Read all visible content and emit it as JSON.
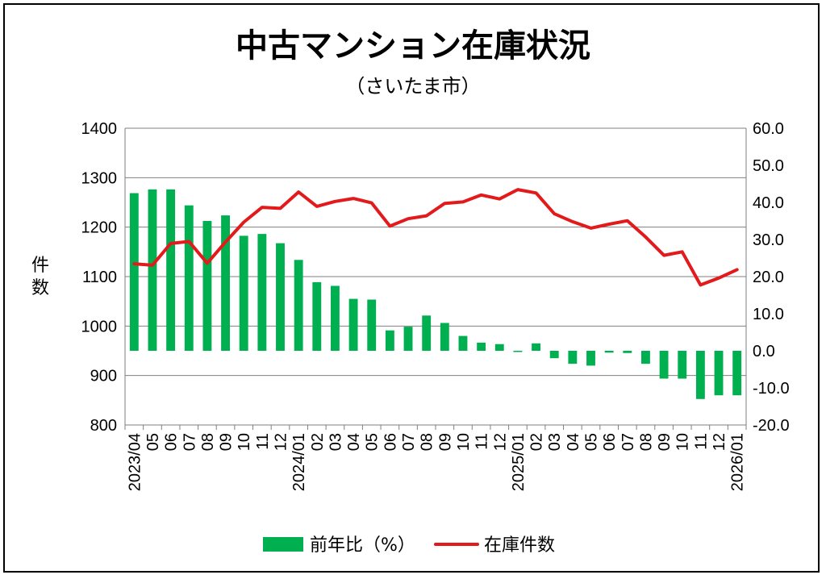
{
  "chart_data": {
    "type": "bar+line",
    "title": "中古マンション在庫状況",
    "subtitle": "（さいたま市）",
    "ylabel": "件数",
    "ylim_left": [
      800,
      1400
    ],
    "yticks_left": [
      1400,
      1300,
      1200,
      1100,
      1000,
      900,
      800
    ],
    "ylim_right": [
      -20,
      60
    ],
    "yticks_right": [
      "60.0",
      "50.0",
      "40.0",
      "30.0",
      "20.0",
      "10.0",
      "0.0",
      "-10.0",
      "-20.0"
    ],
    "categories": [
      "2023/04",
      "05",
      "06",
      "07",
      "08",
      "09",
      "10",
      "11",
      "12",
      "2024/01",
      "02",
      "03",
      "04",
      "05",
      "06",
      "07",
      "08",
      "09",
      "10",
      "11",
      "12",
      "2025/01",
      "02",
      "03",
      "04",
      "05",
      "06",
      "07",
      "08",
      "09",
      "10",
      "11",
      "12",
      "2026/01"
    ],
    "series": [
      {
        "name": "前年比（%）",
        "type": "bar",
        "axis": "right",
        "color": "#00b050",
        "values": [
          42.5,
          43.5,
          43.5,
          39.2,
          35.0,
          36.5,
          31.0,
          31.5,
          29.0,
          24.5,
          18.5,
          17.5,
          14.0,
          13.8,
          5.5,
          6.5,
          9.5,
          7.5,
          4.0,
          2.2,
          1.8,
          -0.3,
          2.0,
          -2.0,
          -3.5,
          -4.0,
          -0.5,
          -0.6,
          -3.5,
          -7.5,
          -7.5,
          -13.0,
          -12.0,
          -12.0
        ]
      },
      {
        "name": "在庫件数",
        "type": "line",
        "axis": "left",
        "color": "#e31a1c",
        "values": [
          1126,
          1123,
          1167,
          1171,
          1127,
          1170,
          1210,
          1240,
          1238,
          1271,
          1242,
          1252,
          1258,
          1249,
          1202,
          1217,
          1223,
          1248,
          1251,
          1265,
          1257,
          1276,
          1269,
          1227,
          1211,
          1198,
          1206,
          1213,
          1180,
          1143,
          1150,
          1083,
          1097,
          1114
        ]
      }
    ],
    "legend": [
      "前年比（%）",
      "在庫件数"
    ],
    "legend_position": "bottom",
    "grid": true
  }
}
